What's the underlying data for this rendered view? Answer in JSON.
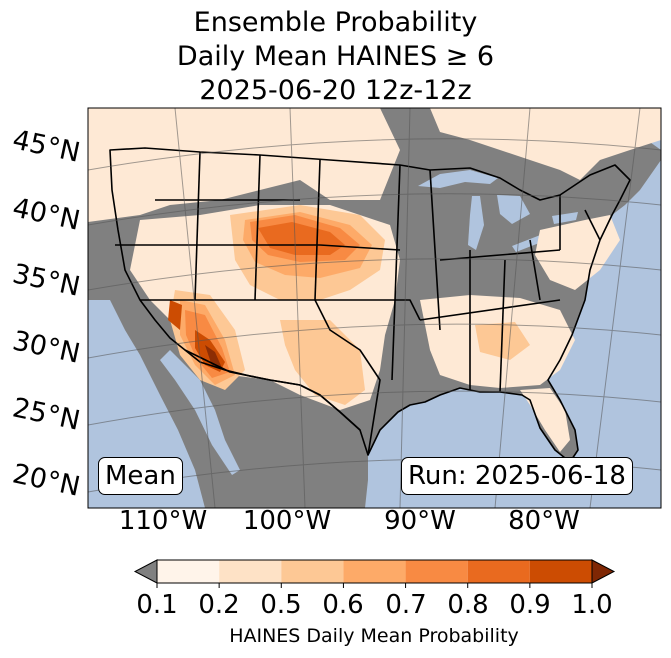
{
  "title": {
    "line1": "Ensemble Probability",
    "line2": "Daily Mean HAINES ≥ 6",
    "line3": "2025-06-20 12z-12z"
  },
  "map": {
    "lat_labels": [
      "45°N",
      "40°N",
      "35°N",
      "30°N",
      "25°N",
      "20°N"
    ],
    "lon_labels": [
      "110°W",
      "100°W",
      "90°W",
      "80°W"
    ],
    "stat_label": "Mean",
    "run_label": "Run: 2025-06-18",
    "colors": {
      "ocean": "#b0c4de",
      "no_data_land": "#808080",
      "border": "#000000"
    }
  },
  "colorbar": {
    "label": "HAINES Daily Mean Probability",
    "ticks": [
      "0.1",
      "0.2",
      "0.5",
      "0.6",
      "0.7",
      "0.8",
      "0.9",
      "1.0"
    ],
    "colors": [
      "#fff4ea",
      "#fee2c6",
      "#fdc895",
      "#fdaa68",
      "#f88a43",
      "#e96a1f",
      "#cc4c02",
      "#8c2d04"
    ],
    "under_color": "#808080",
    "over_color": "#7f2704"
  }
}
